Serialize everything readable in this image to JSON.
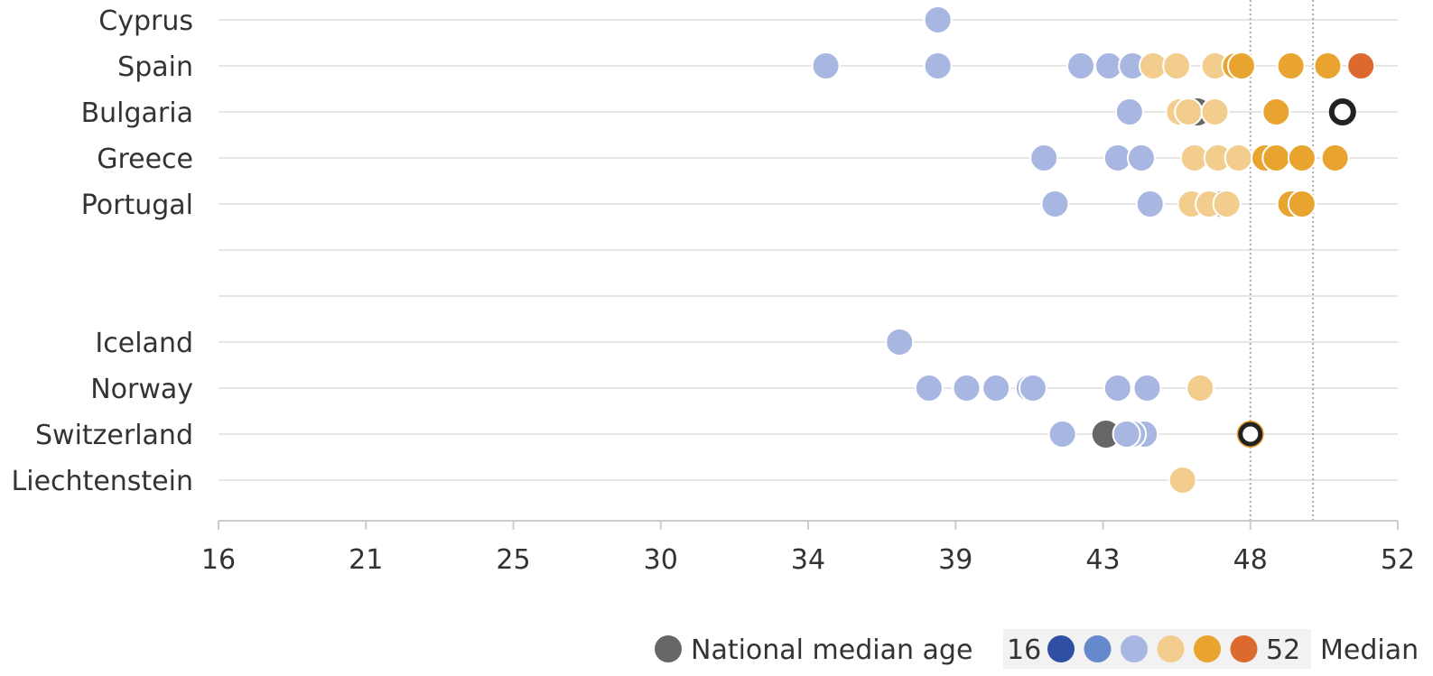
{
  "chart_data": {
    "type": "scatter",
    "colors": {
      "national_median": "#666666",
      "scale": [
        "#2e4fa3",
        "#6589cb",
        "#a8b6e2",
        "#f2cd8e",
        "#e9a42f",
        "#dc6a2e"
      ],
      "gridline": "#e6e6e6",
      "axis": "#cccccc",
      "reference_line": "#aaaaaa",
      "highlight_ring": "#222222"
    },
    "x_axis": {
      "ticks": [
        "16",
        "21",
        "25",
        "30",
        "34",
        "39",
        "43",
        "48",
        "52"
      ]
    },
    "reference_lines": [
      48,
      49.7
    ],
    "categories": [
      "Cyprus",
      "Spain",
      "Bulgaria",
      "Greece",
      "Portugal",
      "",
      "",
      "Iceland",
      "Norway",
      "Switzerland",
      "Liechtenstein"
    ],
    "rows": [
      {
        "country": "Cyprus",
        "points": [
          {
            "v": 38.4,
            "c": 2
          }
        ]
      },
      {
        "country": "Spain",
        "points": [
          {
            "v": 34.6,
            "c": 2
          },
          {
            "v": 38.4,
            "c": 2
          },
          {
            "v": 42.4,
            "c": 2
          },
          {
            "v": 43.2,
            "c": 2
          },
          {
            "v": 44.0,
            "c": 2
          },
          {
            "v": 44.7,
            "c": 3
          },
          {
            "v": 45.5,
            "c": 3
          },
          {
            "v": 46.8,
            "c": 3
          },
          {
            "v": 47.5,
            "c": 4
          },
          {
            "v": 47.7,
            "c": 4
          },
          {
            "v": 49.1,
            "c": 4
          },
          {
            "v": 50.1,
            "c": 4
          },
          {
            "v": 51.0,
            "c": 5
          }
        ]
      },
      {
        "country": "Bulgaria",
        "points": [
          {
            "v": 46.2,
            "c": "national"
          },
          {
            "v": 43.9,
            "c": 2
          },
          {
            "v": 45.6,
            "c": 3
          },
          {
            "v": 45.9,
            "c": 3
          },
          {
            "v": 46.8,
            "c": 3
          },
          {
            "v": 48.7,
            "c": 4
          },
          {
            "v": 50.5,
            "c": "highlight"
          }
        ]
      },
      {
        "country": "Greece",
        "points": [
          {
            "v": 41.4,
            "c": 2
          },
          {
            "v": 43.5,
            "c": 2
          },
          {
            "v": 44.3,
            "c": 2
          },
          {
            "v": 46.1,
            "c": 3
          },
          {
            "v": 46.9,
            "c": 3
          },
          {
            "v": 47.6,
            "c": 3
          },
          {
            "v": 48.4,
            "c": 4
          },
          {
            "v": 48.7,
            "c": 4
          },
          {
            "v": 49.4,
            "c": 4
          },
          {
            "v": 50.3,
            "c": 4
          }
        ]
      },
      {
        "country": "Portugal",
        "points": [
          {
            "v": 47.1,
            "c": "national"
          },
          {
            "v": 41.7,
            "c": 2
          },
          {
            "v": 44.6,
            "c": 2
          },
          {
            "v": 46.0,
            "c": 3
          },
          {
            "v": 46.6,
            "c": 3
          },
          {
            "v": 47.2,
            "c": 3
          },
          {
            "v": 49.1,
            "c": 4
          },
          {
            "v": 49.4,
            "c": 4
          }
        ]
      },
      {
        "country": "",
        "points": []
      },
      {
        "country": "",
        "points": []
      },
      {
        "country": "Iceland",
        "points": [
          {
            "v": 37.1,
            "c": 2
          }
        ]
      },
      {
        "country": "Norway",
        "points": [
          {
            "v": 38.1,
            "c": 2
          },
          {
            "v": 39.3,
            "c": 2
          },
          {
            "v": 40.1,
            "c": 2
          },
          {
            "v": 41.0,
            "c": 2
          },
          {
            "v": 41.1,
            "c": 2
          },
          {
            "v": 43.5,
            "c": 2
          },
          {
            "v": 44.5,
            "c": 2
          },
          {
            "v": 46.3,
            "c": 3
          }
        ]
      },
      {
        "country": "Switzerland",
        "points": [
          {
            "v": 43.1,
            "c": "national"
          },
          {
            "v": 41.9,
            "c": 2
          },
          {
            "v": 44.4,
            "c": 2
          },
          {
            "v": 44.0,
            "c": 2
          },
          {
            "v": 43.8,
            "c": 2
          },
          {
            "v": 48.0,
            "c": "highlight-gold"
          }
        ]
      },
      {
        "country": "Liechtenstein",
        "points": [
          {
            "v": 45.7,
            "c": 3
          }
        ]
      }
    ],
    "legend": {
      "national_label": "National median age",
      "scale_min": "16",
      "scale_max": "52",
      "scale_label": "Median"
    }
  }
}
